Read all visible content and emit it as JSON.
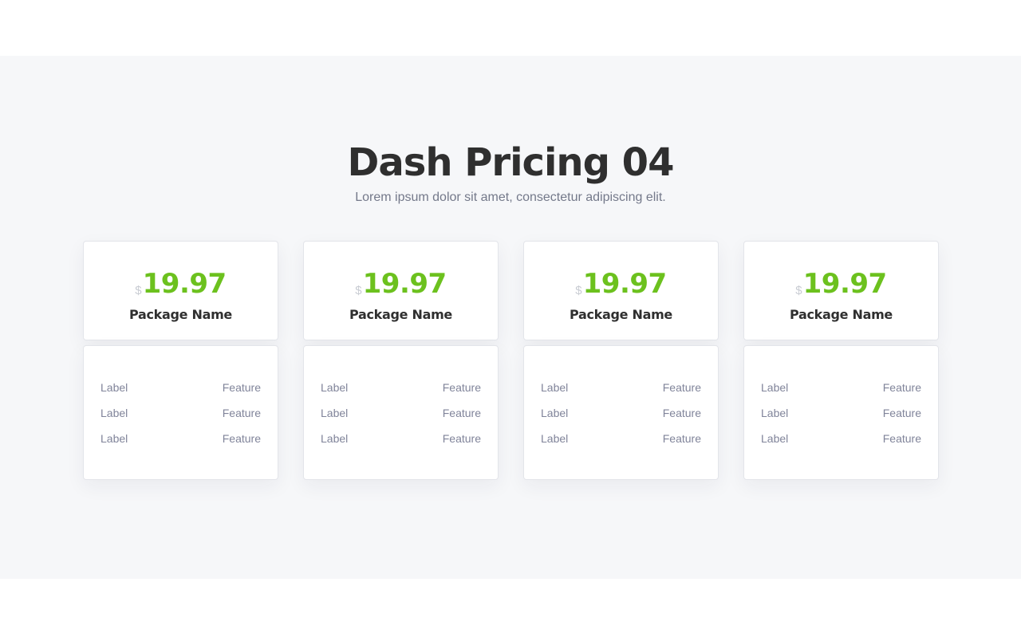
{
  "header": {
    "title": "Dash Pricing 04",
    "subtitle": "Lorem ipsum dolor sit amet, consectetur adipiscing elit."
  },
  "colors": {
    "accent": "#6cc11e",
    "section_bg": "#f6f7f9",
    "title": "#2f2f2f",
    "muted": "#80849a"
  },
  "plans": [
    {
      "currency": "$",
      "price": "19.97",
      "name": "Package Name",
      "features": [
        {
          "label": "Label",
          "value": "Feature"
        },
        {
          "label": "Label",
          "value": "Feature"
        },
        {
          "label": "Label",
          "value": "Feature"
        }
      ]
    },
    {
      "currency": "$",
      "price": "19.97",
      "name": "Package Name",
      "features": [
        {
          "label": "Label",
          "value": "Feature"
        },
        {
          "label": "Label",
          "value": "Feature"
        },
        {
          "label": "Label",
          "value": "Feature"
        }
      ]
    },
    {
      "currency": "$",
      "price": "19.97",
      "name": "Package Name",
      "features": [
        {
          "label": "Label",
          "value": "Feature"
        },
        {
          "label": "Label",
          "value": "Feature"
        },
        {
          "label": "Label",
          "value": "Feature"
        }
      ]
    },
    {
      "currency": "$",
      "price": "19.97",
      "name": "Package Name",
      "features": [
        {
          "label": "Label",
          "value": "Feature"
        },
        {
          "label": "Label",
          "value": "Feature"
        },
        {
          "label": "Label",
          "value": "Feature"
        }
      ]
    }
  ]
}
